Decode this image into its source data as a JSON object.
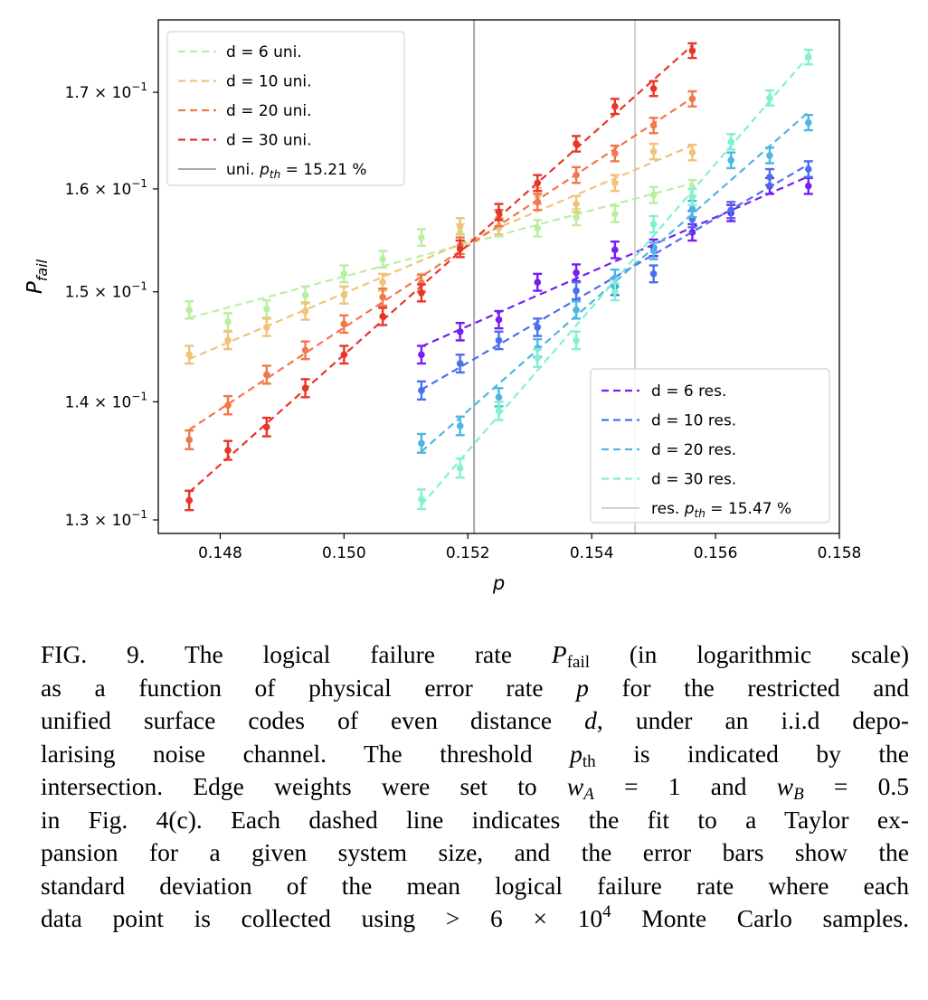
{
  "chart_data": {
    "type": "scatter",
    "xlabel": "p",
    "ylabel": {
      "symbol": "P",
      "sub": "fail"
    },
    "xlim": [
      0.147,
      0.158
    ],
    "ylim": [
      0.1289,
      0.1779
    ],
    "yscale": "log",
    "grid": false,
    "xticks": [
      0.148,
      0.15,
      0.152,
      0.154,
      0.156,
      0.158
    ],
    "xtick_labels": [
      "0.148",
      "0.150",
      "0.152",
      "0.154",
      "0.156",
      "0.158"
    ],
    "yticks": [
      0.13,
      0.14,
      0.15,
      0.16,
      0.17
    ],
    "ytick_labels": [
      {
        "mant": "1.3 × 10",
        "exp": "−1"
      },
      {
        "mant": "1.4 × 10",
        "exp": "−1"
      },
      {
        "mant": "1.5 × 10",
        "exp": "−1"
      },
      {
        "mant": "1.6 × 10",
        "exp": "−1"
      },
      {
        "mant": "1.7 × 10",
        "exp": "−1"
      }
    ],
    "yerr": 0.0008,
    "series": [
      {
        "name": "d = 6 uni.",
        "group": "uni",
        "color": "#b9efa0",
        "x": [
          0.1475,
          0.148125,
          0.14875,
          0.149375,
          0.15,
          0.150625,
          0.15125,
          0.151875,
          0.1525,
          0.153125,
          0.15375,
          0.154375,
          0.155,
          0.155625
        ],
        "y": [
          0.1483,
          0.1472,
          0.1484,
          0.1497,
          0.1517,
          0.1531,
          0.1552,
          0.1557,
          0.1561,
          0.1561,
          0.1572,
          0.1575,
          0.1594,
          0.1601
        ]
      },
      {
        "name": "d = 10 uni.",
        "group": "uni",
        "color": "#f1c27a",
        "x": [
          0.1475,
          0.148125,
          0.14875,
          0.149375,
          0.15,
          0.150625,
          0.15125,
          0.151875,
          0.1525,
          0.153125,
          0.15375,
          0.154375,
          0.155,
          0.155625
        ],
        "y": [
          0.1442,
          0.1455,
          0.1467,
          0.1482,
          0.1497,
          0.1509,
          0.1509,
          0.1563,
          0.1563,
          0.1593,
          0.1585,
          0.1606,
          0.1638,
          0.1637
        ]
      },
      {
        "name": "d = 20 uni.",
        "group": "uni",
        "color": "#f0784a",
        "x": [
          0.1475,
          0.148125,
          0.14875,
          0.149375,
          0.15,
          0.150625,
          0.15125,
          0.151875,
          0.1525,
          0.153125,
          0.15375,
          0.154375,
          0.155,
          0.155625
        ],
        "y": [
          0.1367,
          0.1397,
          0.1424,
          0.1446,
          0.147,
          0.1495,
          0.1508,
          0.1544,
          0.1571,
          0.1587,
          0.1614,
          0.1636,
          0.1665,
          0.1693
        ]
      },
      {
        "name": "d = 30 uni.",
        "group": "uni",
        "color": "#e8352a",
        "x": [
          0.1475,
          0.148125,
          0.14875,
          0.149375,
          0.15,
          0.150625,
          0.15125,
          0.151875,
          0.1525,
          0.153125,
          0.15375,
          0.154375,
          0.155,
          0.155625
        ],
        "y": [
          0.1316,
          0.1358,
          0.1378,
          0.1412,
          0.1442,
          0.1477,
          0.1499,
          0.1541,
          0.1577,
          0.1606,
          0.1646,
          0.1685,
          0.1704,
          0.1745
        ]
      },
      {
        "name": "d = 6 res.",
        "group": "res",
        "color": "#7420f2",
        "x": [
          0.15125,
          0.151875,
          0.1525,
          0.153125,
          0.15375,
          0.154375,
          0.155,
          0.155625,
          0.15625,
          0.156875,
          0.1575
        ],
        "y": [
          0.1442,
          0.1463,
          0.1474,
          0.1509,
          0.1518,
          0.154,
          0.1542,
          0.1557,
          0.1576,
          0.1603,
          0.1603
        ]
      },
      {
        "name": "d = 10 res.",
        "group": "res",
        "color": "#4a6ff0",
        "x": [
          0.15125,
          0.151875,
          0.1525,
          0.153125,
          0.15375,
          0.154375,
          0.155,
          0.155625,
          0.15625,
          0.156875,
          0.1575
        ],
        "y": [
          0.141,
          0.1434,
          0.1455,
          0.1467,
          0.1501,
          0.1505,
          0.1517,
          0.157,
          0.1579,
          0.1612,
          0.162
        ]
      },
      {
        "name": "d = 20 res.",
        "group": "res",
        "color": "#4cb6e4",
        "x": [
          0.15125,
          0.151875,
          0.1525,
          0.153125,
          0.15375,
          0.154375,
          0.155,
          0.155625,
          0.15625,
          0.156875,
          0.1575
        ],
        "y": [
          0.1364,
          0.1379,
          0.1404,
          0.1448,
          0.1483,
          0.1513,
          0.1539,
          0.158,
          0.1629,
          0.1634,
          0.1668
        ]
      },
      {
        "name": "d = 30 res.",
        "group": "res",
        "color": "#82f0d2",
        "x": [
          0.15125,
          0.151875,
          0.1525,
          0.153125,
          0.15375,
          0.154375,
          0.155,
          0.155625,
          0.15625,
          0.156875,
          0.1575
        ],
        "y": [
          0.1317,
          0.1343,
          0.1392,
          0.1439,
          0.1455,
          0.15,
          0.1565,
          0.1592,
          0.1648,
          0.1694,
          0.1738
        ]
      }
    ],
    "thresholds": [
      {
        "group": "uni",
        "value": 0.1521,
        "label_prefix": "uni. ",
        "symbol": "p",
        "sub": "th",
        "label_value": " = 15.21 %",
        "color": "#a8a8a8"
      },
      {
        "group": "res",
        "value": 0.1547,
        "label_prefix": "res. ",
        "symbol": "p",
        "sub": "th",
        "label_value": " = 15.47 %",
        "color": "#d0d0d0"
      }
    ],
    "legends": [
      {
        "group": "uni",
        "placement": "upper-left"
      },
      {
        "group": "res",
        "placement": "lower-right"
      }
    ]
  },
  "caption": {
    "lines": [
      [
        {
          "t": "FIG. 9.  The logical failure rate "
        },
        {
          "t": "P",
          "s": "i"
        },
        {
          "t": "fail",
          "s": "sub"
        },
        {
          "t": " (in logarithmic scale)"
        }
      ],
      [
        {
          "t": "as a function of physical error rate "
        },
        {
          "t": "p",
          "s": "i"
        },
        {
          "t": " for the restricted and"
        }
      ],
      [
        {
          "t": "unified surface codes of even distance "
        },
        {
          "t": "d",
          "s": "i"
        },
        {
          "t": ", under an i.i.d depo-"
        }
      ],
      [
        {
          "t": "larising noise channel. The threshold "
        },
        {
          "t": "p",
          "s": "i"
        },
        {
          "t": "th",
          "s": "sub"
        },
        {
          "t": " is indicated by the"
        }
      ],
      [
        {
          "t": "intersection. Edge weights were set to "
        },
        {
          "t": "w",
          "s": "i"
        },
        {
          "t": "A",
          "s": "subi"
        },
        {
          "t": " = 1 and "
        },
        {
          "t": "w",
          "s": "i"
        },
        {
          "t": "B",
          "s": "subi"
        },
        {
          "t": " = 0.5"
        }
      ],
      [
        {
          "t": "in Fig. 4(c). Each dashed line indicates the fit to a Taylor ex-"
        }
      ],
      [
        {
          "t": "pansion for a given system size, and the error bars show the"
        }
      ],
      [
        {
          "t": "standard deviation of the mean logical failure rate where each"
        }
      ],
      [
        {
          "t": "data point is collected using > 6 × 10"
        },
        {
          "t": "4",
          "s": "sup"
        },
        {
          "t": " Monte Carlo samples."
        }
      ]
    ]
  }
}
